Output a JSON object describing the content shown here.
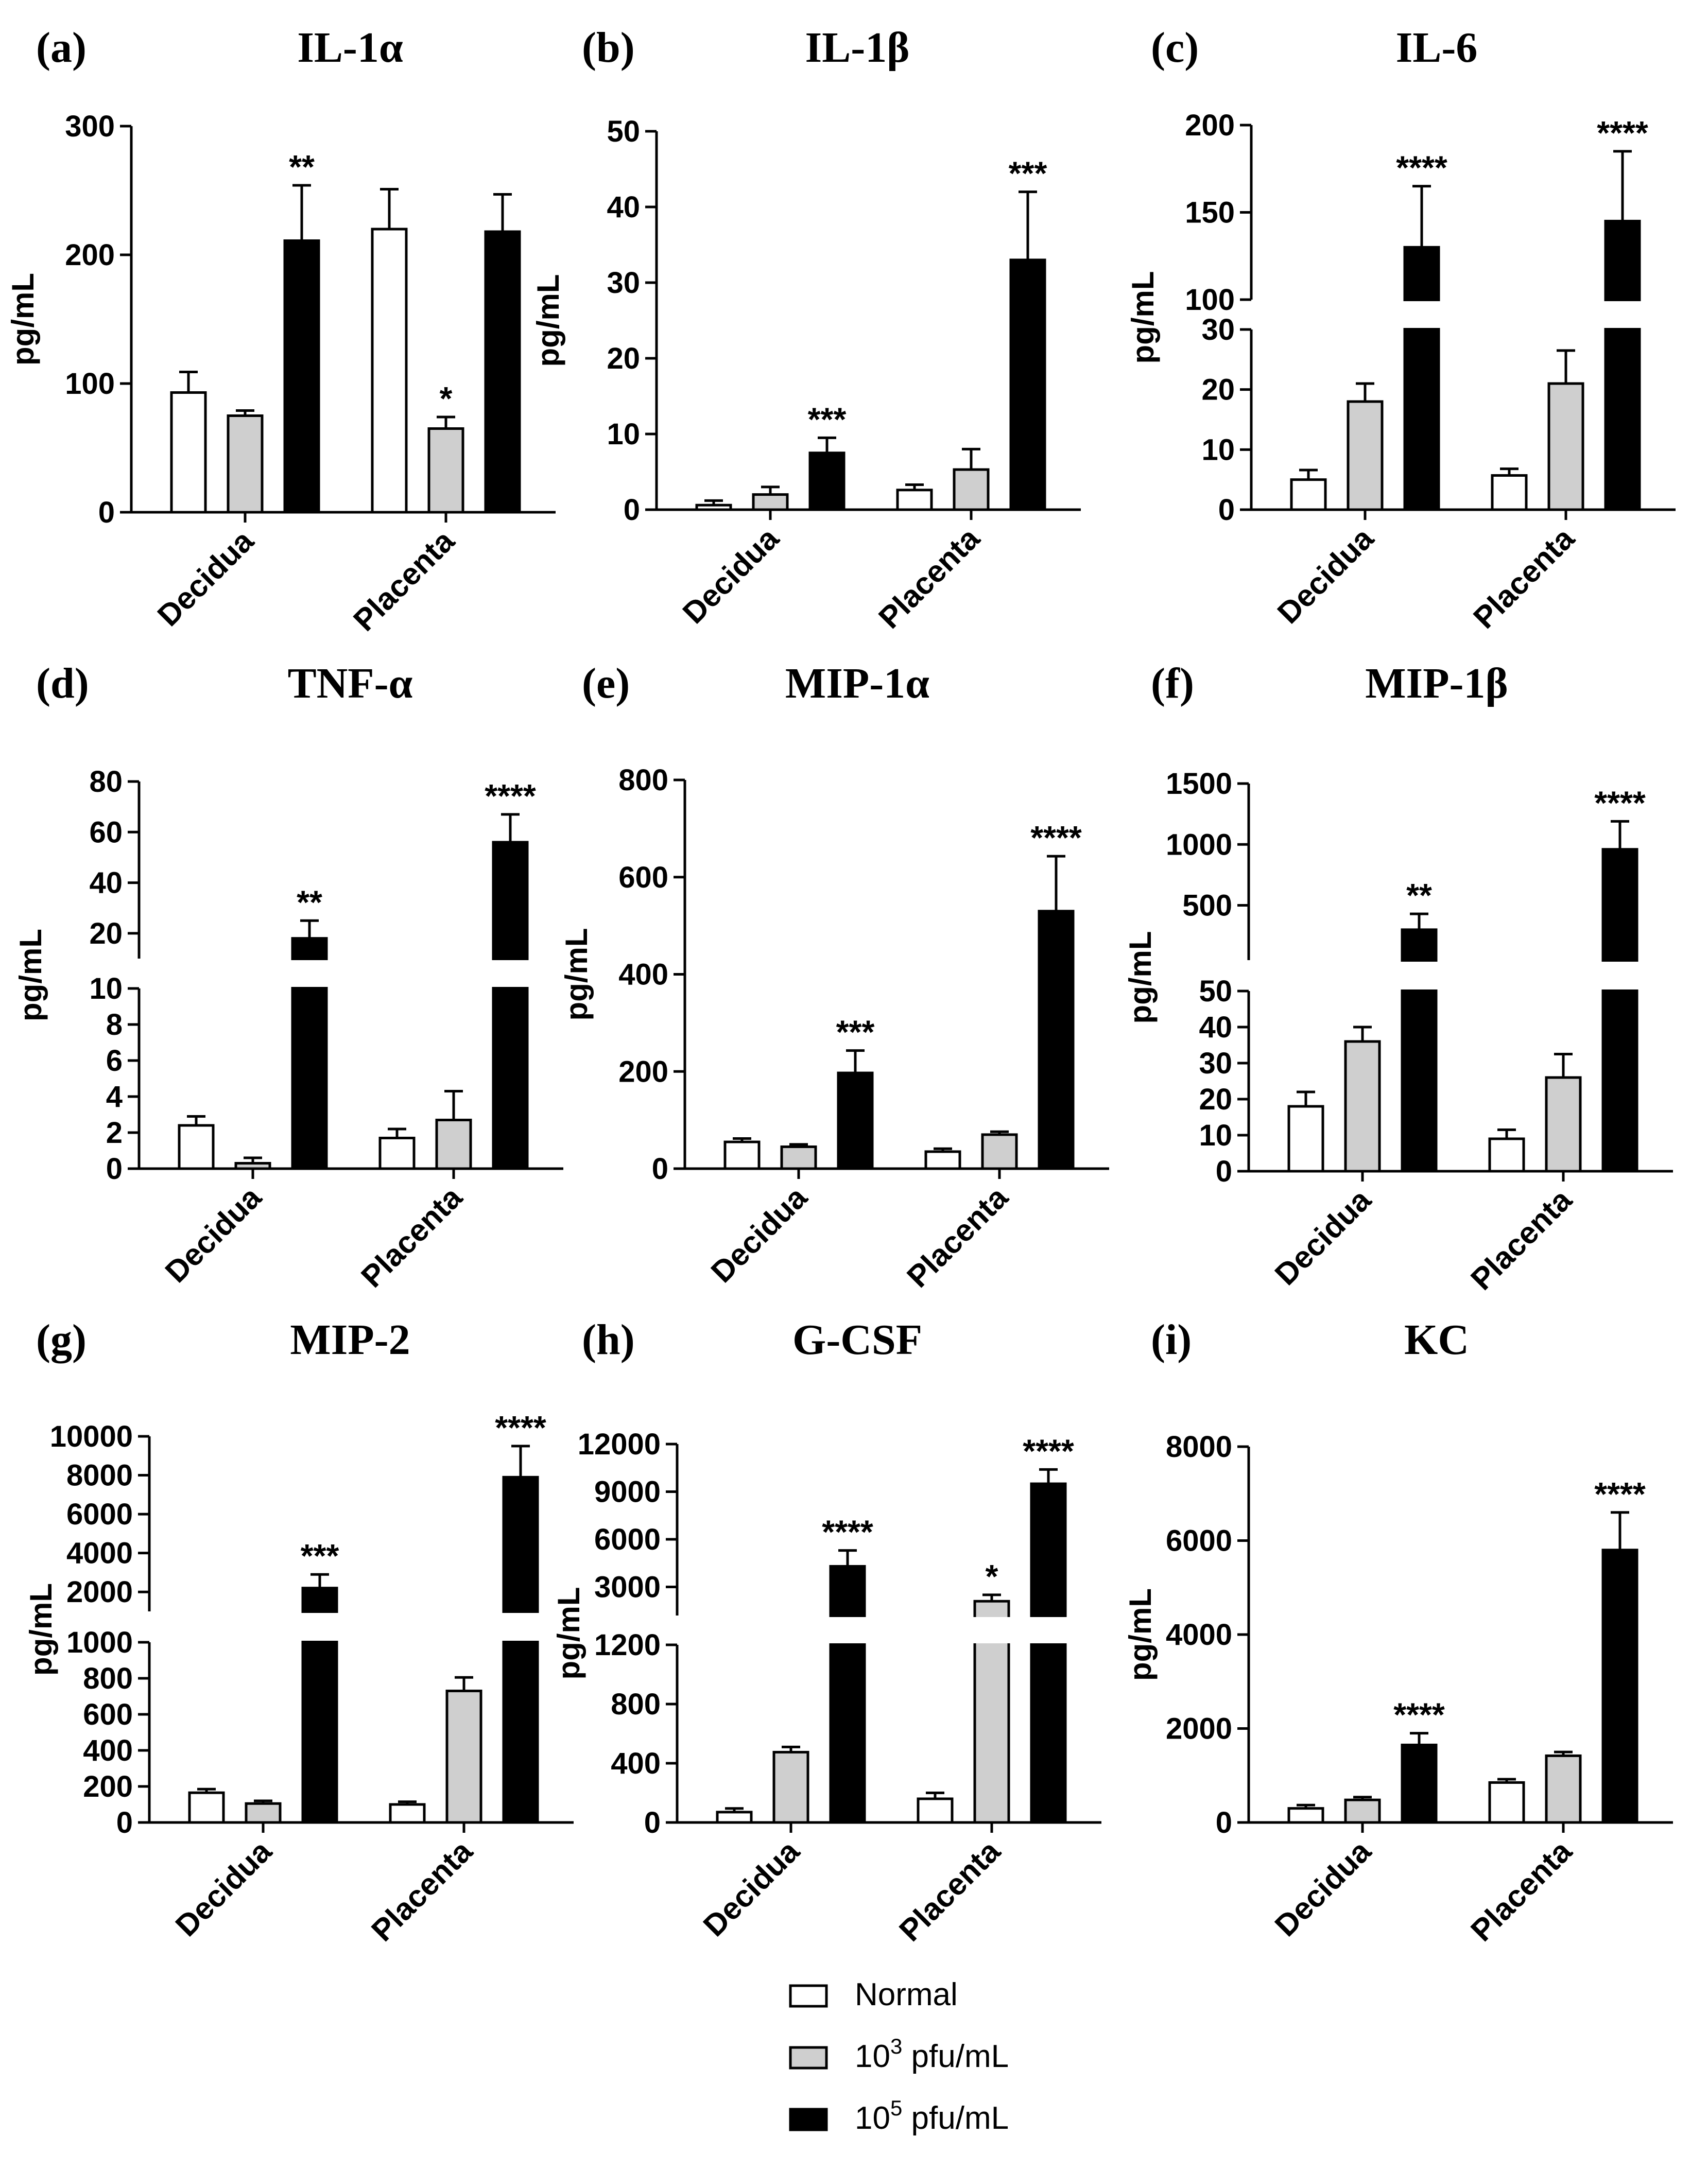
{
  "series": [
    {
      "name": "Normal",
      "color": "#ffffff"
    },
    {
      "name": "10",
      "sup": "3",
      "unit": " pfu/mL",
      "color": "#cfcfcf"
    },
    {
      "name": "10",
      "sup": "5",
      "unit": " pfu/mL",
      "color": "#000000"
    }
  ],
  "categories": [
    "Decidua",
    "Placenta"
  ],
  "ylabel": "pg/mL",
  "chart_data": [
    {
      "type": "bar",
      "panel": "(a)",
      "title": "IL-1α",
      "ylabel": "pg/mL",
      "categories": [
        "Decidua",
        "Placenta"
      ],
      "series": [
        {
          "name": "Normal",
          "values": [
            93,
            220
          ],
          "errors": [
            16,
            31
          ],
          "sig": [
            "",
            ""
          ]
        },
        {
          "name": "10^3 pfu/mL",
          "values": [
            75,
            65
          ],
          "errors": [
            4,
            9
          ],
          "sig": [
            "",
            "*"
          ]
        },
        {
          "name": "10^5 pfu/mL",
          "values": [
            211,
            218
          ],
          "errors": [
            43,
            29
          ],
          "sig": [
            "**",
            ""
          ]
        }
      ],
      "segments": [
        {
          "range": [
            0,
            300
          ],
          "ticks": [
            0,
            100,
            200,
            300
          ]
        }
      ]
    },
    {
      "type": "bar",
      "panel": "(b)",
      "title": "IL-1β",
      "ylabel": "pg/mL",
      "categories": [
        "Decidua",
        "Placenta"
      ],
      "series": [
        {
          "name": "Normal",
          "values": [
            0.6,
            2.6
          ],
          "errors": [
            0.6,
            0.7
          ],
          "sig": [
            "",
            ""
          ]
        },
        {
          "name": "10^3 pfu/mL",
          "values": [
            2.0,
            5.3
          ],
          "errors": [
            1.0,
            2.7
          ],
          "sig": [
            "",
            ""
          ]
        },
        {
          "name": "10^5 pfu/mL",
          "values": [
            7.5,
            33
          ],
          "errors": [
            2.0,
            9
          ],
          "sig": [
            "***",
            "***"
          ]
        }
      ],
      "segments": [
        {
          "range": [
            0,
            50
          ],
          "ticks": [
            0,
            10,
            20,
            30,
            40,
            50
          ]
        }
      ]
    },
    {
      "type": "bar",
      "panel": "(c)",
      "title": "IL-6",
      "ylabel": "pg/mL",
      "categories": [
        "Decidua",
        "Placenta"
      ],
      "series": [
        {
          "name": "Normal",
          "values": [
            5,
            5.7
          ],
          "errors": [
            1.6,
            1.1
          ],
          "sig": [
            "",
            ""
          ]
        },
        {
          "name": "10^3 pfu/mL",
          "values": [
            18,
            21
          ],
          "errors": [
            3,
            5.5
          ],
          "sig": [
            "",
            ""
          ]
        },
        {
          "name": "10^5 pfu/mL",
          "values": [
            130,
            145
          ],
          "errors": [
            35,
            40
          ],
          "sig": [
            "****",
            "****"
          ]
        }
      ],
      "segments": [
        {
          "range": [
            0,
            30
          ],
          "ticks": [
            0,
            10,
            20,
            30
          ]
        },
        {
          "range": [
            100,
            200
          ],
          "ticks": [
            100,
            150,
            200
          ]
        }
      ]
    },
    {
      "type": "bar",
      "panel": "(d)",
      "title": "TNF-α",
      "ylabel": "pg/mL",
      "categories": [
        "Decidua",
        "Placenta"
      ],
      "series": [
        {
          "name": "Normal",
          "values": [
            2.4,
            1.7
          ],
          "errors": [
            0.5,
            0.5
          ],
          "sig": [
            "",
            ""
          ]
        },
        {
          "name": "10^3 pfu/mL",
          "values": [
            0.3,
            2.7
          ],
          "errors": [
            0.3,
            1.6
          ],
          "sig": [
            "",
            ""
          ]
        },
        {
          "name": "10^5 pfu/mL",
          "values": [
            18,
            56
          ],
          "errors": [
            7,
            11
          ],
          "sig": [
            "**",
            "****"
          ]
        }
      ],
      "segments": [
        {
          "range": [
            0,
            10
          ],
          "ticks": [
            0,
            2,
            4,
            6,
            8,
            10
          ]
        },
        {
          "range": [
            10,
            80
          ],
          "ticks": [
            20,
            40,
            60,
            80
          ]
        }
      ]
    },
    {
      "type": "bar",
      "panel": "(e)",
      "title": "MIP-1α",
      "ylabel": "pg/mL",
      "categories": [
        "Decidua",
        "Placenta"
      ],
      "series": [
        {
          "name": "Normal",
          "values": [
            55,
            35
          ],
          "errors": [
            7,
            6
          ],
          "sig": [
            "",
            ""
          ]
        },
        {
          "name": "10^3 pfu/mL",
          "values": [
            45,
            70
          ],
          "errors": [
            5,
            6
          ],
          "sig": [
            "",
            ""
          ]
        },
        {
          "name": "10^5 pfu/mL",
          "values": [
            197,
            530
          ],
          "errors": [
            46,
            113
          ],
          "sig": [
            "***",
            "****"
          ]
        }
      ],
      "segments": [
        {
          "range": [
            0,
            800
          ],
          "ticks": [
            0,
            200,
            400,
            600,
            800
          ]
        }
      ]
    },
    {
      "type": "bar",
      "panel": "(f)",
      "title": "MIP-1β",
      "ylabel": "pg/mL",
      "categories": [
        "Decidua",
        "Placenta"
      ],
      "series": [
        {
          "name": "Normal",
          "values": [
            18,
            9
          ],
          "errors": [
            4,
            2.5
          ],
          "sig": [
            "",
            ""
          ]
        },
        {
          "name": "10^3 pfu/mL",
          "values": [
            36,
            26
          ],
          "errors": [
            4,
            6.5
          ],
          "sig": [
            "",
            ""
          ]
        },
        {
          "name": "10^5 pfu/mL",
          "values": [
            300,
            960
          ],
          "errors": [
            130,
            230
          ],
          "sig": [
            "**",
            "****"
          ]
        }
      ],
      "segments": [
        {
          "range": [
            0,
            50
          ],
          "ticks": [
            0,
            10,
            20,
            30,
            40,
            50
          ]
        },
        {
          "range": [
            50,
            1500
          ],
          "ticks": [
            500,
            1000,
            1500
          ]
        }
      ]
    },
    {
      "type": "bar",
      "panel": "(g)",
      "title": "MIP-2",
      "ylabel": "pg/mL",
      "categories": [
        "Decidua",
        "Placenta"
      ],
      "series": [
        {
          "name": "Normal",
          "values": [
            165,
            100
          ],
          "errors": [
            20,
            15
          ],
          "sig": [
            "",
            ""
          ]
        },
        {
          "name": "10^3 pfu/mL",
          "values": [
            105,
            730
          ],
          "errors": [
            15,
            75
          ],
          "sig": [
            "",
            ""
          ]
        },
        {
          "name": "10^5 pfu/mL",
          "values": [
            2200,
            7900
          ],
          "errors": [
            700,
            1600
          ],
          "sig": [
            "***",
            "****"
          ]
        }
      ],
      "segments": [
        {
          "range": [
            0,
            1000
          ],
          "ticks": [
            0,
            200,
            400,
            600,
            800,
            1000
          ]
        },
        {
          "range": [
            1000,
            10000
          ],
          "ticks": [
            2000,
            4000,
            6000,
            8000,
            10000
          ]
        }
      ]
    },
    {
      "type": "bar",
      "panel": "(h)",
      "title": "G-CSF",
      "ylabel": "pg/mL",
      "categories": [
        "Decidua",
        "Placenta"
      ],
      "series": [
        {
          "name": "Normal",
          "values": [
            70,
            160
          ],
          "errors": [
            25,
            40
          ],
          "sig": [
            "",
            ""
          ]
        },
        {
          "name": "10^3 pfu/mL",
          "values": [
            475,
            2100
          ],
          "errors": [
            35,
            400
          ],
          "sig": [
            "",
            "*"
          ]
        },
        {
          "name": "10^5 pfu/mL",
          "values": [
            4300,
            9500
          ],
          "errors": [
            1000,
            900
          ],
          "sig": [
            "****",
            "****"
          ]
        }
      ],
      "segments": [
        {
          "range": [
            0,
            1200
          ],
          "ticks": [
            0,
            400,
            800,
            1200
          ]
        },
        {
          "range": [
            1200,
            12000
          ],
          "ticks": [
            3000,
            6000,
            9000,
            12000
          ]
        }
      ]
    },
    {
      "type": "bar",
      "panel": "(i)",
      "title": "KC",
      "ylabel": "pg/mL",
      "categories": [
        "Decidua",
        "Placenta"
      ],
      "series": [
        {
          "name": "Normal",
          "values": [
            300,
            850
          ],
          "errors": [
            70,
            70
          ],
          "sig": [
            "",
            ""
          ]
        },
        {
          "name": "10^3 pfu/mL",
          "values": [
            480,
            1420
          ],
          "errors": [
            60,
            80
          ],
          "sig": [
            "",
            ""
          ]
        },
        {
          "name": "10^5 pfu/mL",
          "values": [
            1650,
            5800
          ],
          "errors": [
            250,
            800
          ],
          "sig": [
            "****",
            "****"
          ]
        }
      ],
      "segments": [
        {
          "range": [
            0,
            8000
          ],
          "ticks": [
            0,
            2000,
            4000,
            6000,
            8000
          ]
        }
      ]
    }
  ]
}
